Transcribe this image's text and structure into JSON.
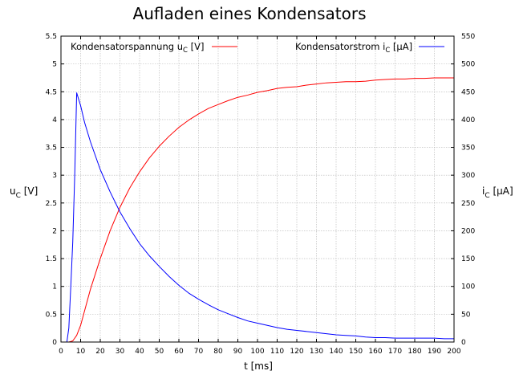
{
  "chart_data": {
    "type": "line",
    "title": "Aufladen eines Kondensators",
    "xlabel": "t [ms]",
    "ylabel": {
      "base": "u",
      "sub": "C",
      "unit": " [V]"
    },
    "y2label": {
      "base": "i",
      "sub": "C",
      "unit": " [µA]"
    },
    "xlim": [
      0,
      200
    ],
    "ylim": [
      0,
      5.5
    ],
    "y2lim": [
      0,
      550
    ],
    "x_ticks": [
      "0",
      "10",
      "20",
      "30",
      "40",
      "50",
      "60",
      "70",
      "80",
      "90",
      "100",
      "110",
      "120",
      "130",
      "140",
      "150",
      "160",
      "170",
      "180",
      "190",
      "200"
    ],
    "y_ticks": [
      "0",
      "0.5",
      "1",
      "1.5",
      "2",
      "2.5",
      "3",
      "3.5",
      "4",
      "4.5",
      "5",
      "5.5"
    ],
    "y2_ticks": [
      "0",
      "50",
      "100",
      "150",
      "200",
      "250",
      "300",
      "350",
      "400",
      "450",
      "500",
      "550"
    ],
    "grid": true,
    "legend_placement": "top",
    "series": [
      {
        "name": "Kondensatorspannung u_C [V]",
        "legend": {
          "base": "Kondensatorspannung u",
          "sub": "C",
          "unit": " [V]"
        },
        "color": "#ff0000",
        "axis": "left",
        "x": [
          0,
          4,
          6,
          8,
          10,
          15,
          20,
          25,
          30,
          35,
          40,
          45,
          50,
          55,
          60,
          65,
          70,
          75,
          80,
          85,
          90,
          95,
          100,
          105,
          110,
          115,
          120,
          125,
          130,
          135,
          140,
          145,
          150,
          155,
          160,
          165,
          170,
          175,
          180,
          185,
          190,
          195,
          200
        ],
        "values": [
          0,
          0,
          0.02,
          0.12,
          0.3,
          0.95,
          1.5,
          2.0,
          2.42,
          2.77,
          3.06,
          3.31,
          3.52,
          3.7,
          3.86,
          3.99,
          4.1,
          4.2,
          4.27,
          4.34,
          4.4,
          4.44,
          4.49,
          4.52,
          4.56,
          4.58,
          4.59,
          4.62,
          4.64,
          4.66,
          4.67,
          4.68,
          4.68,
          4.69,
          4.71,
          4.72,
          4.73,
          4.73,
          4.74,
          4.74,
          4.75,
          4.75,
          4.75
        ]
      },
      {
        "name": "Kondensatorstrom i_C [µA]",
        "legend": {
          "base": "Kondensatorstrom i",
          "sub": "C",
          "unit": " [µA]"
        },
        "color": "#0000ff",
        "axis": "right",
        "x": [
          0,
          3,
          4,
          5,
          6,
          7,
          8,
          10,
          12,
          15,
          20,
          25,
          30,
          35,
          40,
          45,
          50,
          55,
          60,
          65,
          70,
          75,
          80,
          85,
          90,
          95,
          100,
          105,
          110,
          115,
          120,
          125,
          130,
          135,
          140,
          145,
          150,
          155,
          160,
          165,
          170,
          175,
          180,
          185,
          190,
          195,
          200
        ],
        "values": [
          0,
          0,
          25,
          100,
          180,
          300,
          448,
          425,
          395,
          360,
          310,
          270,
          234,
          204,
          177,
          155,
          136,
          118,
          102,
          88,
          77,
          67,
          58,
          51,
          44,
          38,
          34,
          30,
          26,
          23,
          21,
          19,
          17,
          15,
          13,
          12,
          11,
          9,
          8,
          8,
          7,
          7,
          7,
          7,
          7,
          6,
          6
        ]
      }
    ]
  }
}
